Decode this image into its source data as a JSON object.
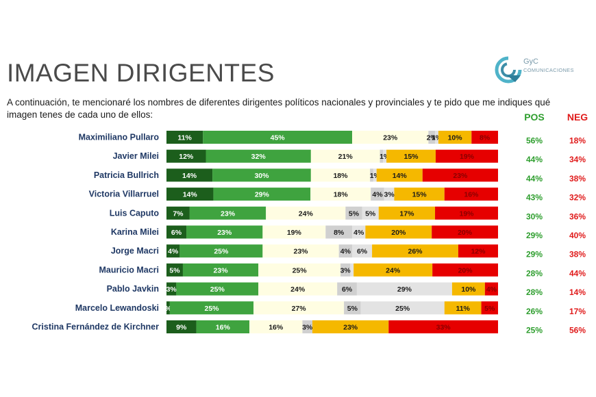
{
  "header": {
    "title": "IMAGEN DIRIGENTES",
    "subtitle": "A continuación, te mencionaré los nombres de diferentes dirigentes políticos nacionales y provinciales y te pido que me indiques qué imagen tenes de cada uno de ellos:",
    "logo_line1": "GyC",
    "logo_line2": "COMUNICACIONES",
    "pos_label": "POS",
    "neg_label": "NEG"
  },
  "colors": {
    "muy_positiva": "#1c5e1c",
    "positiva": "#3fa33f",
    "regular": "#fffde2",
    "ns_nc": "#d0d0d0",
    "no_conoce": "#e3e3e3",
    "negativa": "#f5b800",
    "muy_negativa": "#e60000",
    "pos_text": "#2e9e2e",
    "neg_text": "#e01b1b"
  },
  "chart_data": {
    "type": "bar",
    "orientation": "horizontal-stacked-100",
    "segment_categories": [
      "muy_positiva",
      "positiva",
      "regular",
      "ns_nc",
      "no_conoce",
      "negativa",
      "muy_negativa"
    ],
    "rows": [
      {
        "name": "Maximiliano Pullaro",
        "values": [
          11,
          45,
          23,
          2,
          1,
          10,
          8
        ],
        "labels": [
          "11%",
          "45%",
          "23%",
          "2%",
          "1%",
          "10%",
          "8%"
        ],
        "pos": "56%",
        "neg": "18%"
      },
      {
        "name": "Javier Milei",
        "values": [
          12,
          32,
          21,
          1,
          1,
          15,
          19
        ],
        "labels": [
          "12%",
          "32%",
          "21%",
          "",
          "1%",
          "15%",
          "19%"
        ],
        "pos": "44%",
        "neg": "34%"
      },
      {
        "name": "Patricia Bullrich",
        "values": [
          14,
          30,
          18,
          1,
          1,
          14,
          23
        ],
        "labels": [
          "14%",
          "30%",
          "18%",
          "",
          "1%",
          "14%",
          "23%"
        ],
        "pos": "44%",
        "neg": "38%"
      },
      {
        "name": "Victoria Villarruel",
        "values": [
          14,
          29,
          18,
          4,
          3,
          15,
          16
        ],
        "labels": [
          "14%",
          "29%",
          "18%",
          "4%",
          "3%",
          "15%",
          "16%"
        ],
        "pos": "43%",
        "neg": "32%"
      },
      {
        "name": "Luis Caputo",
        "values": [
          7,
          23,
          24,
          5,
          5,
          17,
          19
        ],
        "labels": [
          "7%",
          "23%",
          "24%",
          "5%",
          "5%",
          "17%",
          "19%"
        ],
        "pos": "30%",
        "neg": "36%"
      },
      {
        "name": "Karina Milei",
        "values": [
          6,
          23,
          19,
          8,
          4,
          20,
          20
        ],
        "labels": [
          "6%",
          "23%",
          "19%",
          "8%",
          "4%",
          "20%",
          "20%"
        ],
        "pos": "29%",
        "neg": "40%"
      },
      {
        "name": "Jorge Macri",
        "values": [
          4,
          25,
          23,
          4,
          6,
          26,
          12
        ],
        "labels": [
          "4%",
          "25%",
          "23%",
          "4%",
          "6%",
          "26%",
          "12%"
        ],
        "pos": "29%",
        "neg": "38%"
      },
      {
        "name": "Mauricio Macri",
        "values": [
          5,
          23,
          25,
          3,
          1,
          24,
          20
        ],
        "labels": [
          "5%",
          "23%",
          "25%",
          "3%",
          "",
          "24%",
          "20%"
        ],
        "pos": "28%",
        "neg": "44%"
      },
      {
        "name": "Pablo Javkin",
        "values": [
          3,
          25,
          24,
          6,
          29,
          10,
          4
        ],
        "labels": [
          "3%",
          "25%",
          "24%",
          "6%",
          "29%",
          "10%",
          "4%"
        ],
        "pos": "28%",
        "neg": "14%"
      },
      {
        "name": "Marcelo Lewandoski",
        "values": [
          1,
          25,
          27,
          5,
          25,
          11,
          5
        ],
        "labels": [
          "%",
          "25%",
          "27%",
          "5%",
          "25%",
          "11%",
          "5%"
        ],
        "pos": "26%",
        "neg": "17%"
      },
      {
        "name": "Cristina Fernández de Kirchner",
        "values": [
          9,
          16,
          16,
          3,
          0,
          23,
          33
        ],
        "labels": [
          "9%",
          "16%",
          "16%",
          "3%",
          "",
          "23%",
          "33%"
        ],
        "pos": "25%",
        "neg": "56%"
      }
    ]
  }
}
